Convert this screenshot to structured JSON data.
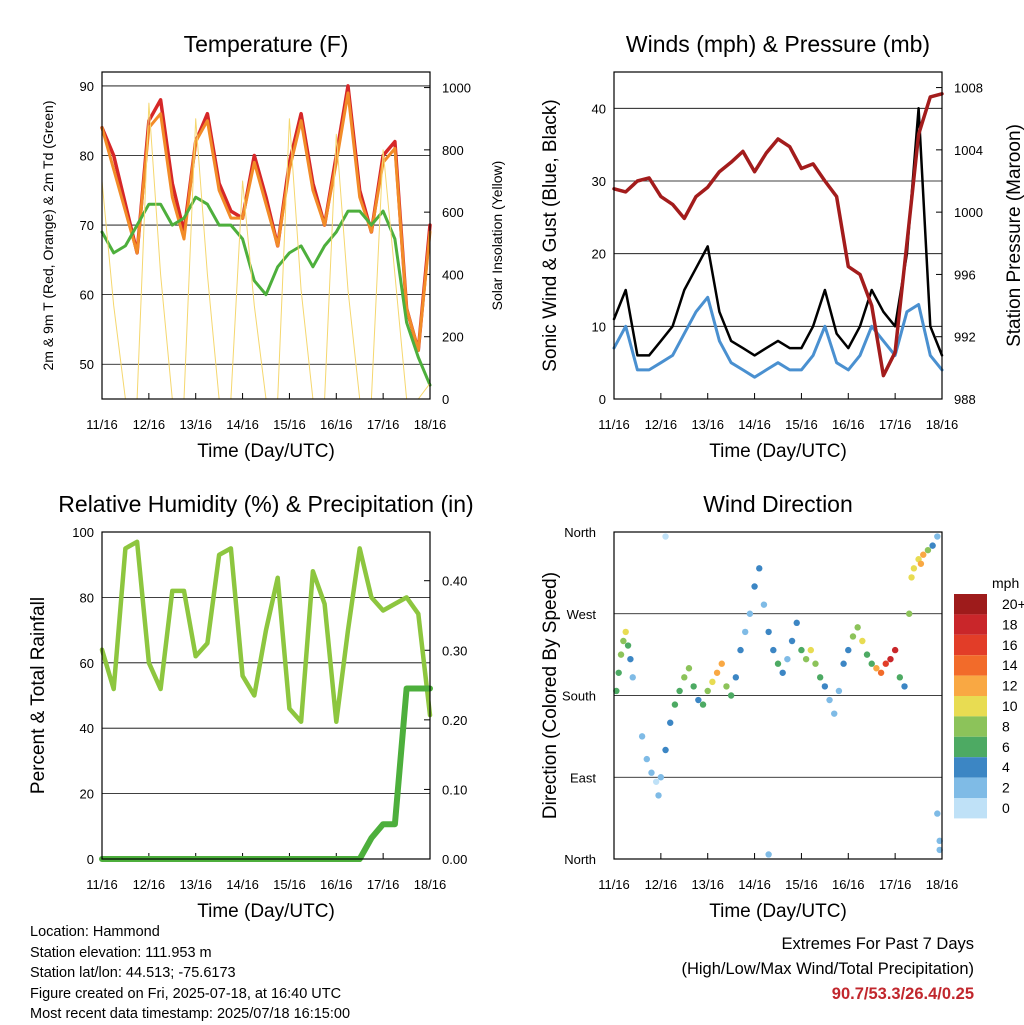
{
  "chart_data": [
    {
      "type": "line",
      "title": "Temperature (F)",
      "xlabel": "Time (Day/UTC)",
      "ylabel": "2m & 9m T (Red, Orange) & 2m Td (Green)",
      "y2label": "Solar Insolation (Yellow)",
      "x_ticks": [
        "11/16",
        "12/16",
        "13/16",
        "14/16",
        "15/16",
        "16/16",
        "17/16",
        "18/16"
      ],
      "ylim": [
        45,
        92
      ],
      "y_ticks": [
        50,
        60,
        70,
        80,
        90
      ],
      "y2lim": [
        0,
        1050
      ],
      "y2_ticks": [
        0,
        200,
        400,
        600,
        800,
        1000
      ],
      "x": [
        0,
        0.25,
        0.5,
        0.75,
        1,
        1.25,
        1.5,
        1.75,
        2,
        2.25,
        2.5,
        2.75,
        3,
        3.25,
        3.5,
        3.75,
        4,
        4.25,
        4.5,
        4.75,
        5,
        5.25,
        5.5,
        5.75,
        6,
        6.25,
        6.5,
        6.75,
        7
      ],
      "series": [
        {
          "color": "#d62728",
          "values": [
            84,
            80,
            73,
            66,
            85,
            88,
            76,
            69,
            82,
            86,
            76,
            72,
            71,
            80,
            74,
            67,
            79,
            86,
            76,
            70,
            80,
            90,
            75,
            69,
            80,
            82,
            58,
            52,
            70
          ]
        },
        {
          "color": "#f28c28",
          "values": [
            84,
            78,
            72,
            66,
            84,
            86,
            74,
            68,
            82,
            85,
            75,
            71,
            71,
            79,
            73,
            67,
            78,
            85,
            75,
            70,
            79,
            89,
            74,
            69,
            79,
            81,
            58,
            52,
            69
          ]
        },
        {
          "color": "#4daf3c",
          "values": [
            69,
            66,
            67,
            70,
            73,
            73,
            70,
            71,
            74,
            73,
            70,
            70,
            68,
            62,
            60,
            64,
            66,
            67,
            64,
            67,
            69,
            72,
            72,
            70,
            72,
            68,
            56,
            51,
            47
          ]
        },
        {
          "color": "#f5d76e",
          "values": [
            700,
            300,
            0,
            0,
            950,
            400,
            0,
            0,
            900,
            400,
            0,
            0,
            700,
            300,
            0,
            0,
            900,
            350,
            0,
            0,
            850,
            350,
            0,
            0,
            800,
            400,
            0,
            0,
            50
          ]
        }
      ]
    },
    {
      "type": "line",
      "title": "Winds (mph) & Pressure (mb)",
      "xlabel": "Time (Day/UTC)",
      "ylabel": "Sonic Wind & Gust (Blue, Black)",
      "y2label": "Station Pressure (Maroon)",
      "x_ticks": [
        "11/16",
        "12/16",
        "13/16",
        "14/16",
        "15/16",
        "16/16",
        "17/16",
        "18/16"
      ],
      "ylim": [
        0,
        45
      ],
      "y_ticks": [
        0,
        10,
        20,
        30,
        40
      ],
      "y2lim": [
        988,
        1009
      ],
      "y2_ticks": [
        988,
        992,
        996,
        1000,
        1004,
        1008
      ],
      "x": [
        0,
        0.25,
        0.5,
        0.75,
        1,
        1.25,
        1.5,
        1.75,
        2,
        2.25,
        2.5,
        2.75,
        3,
        3.25,
        3.5,
        3.75,
        4,
        4.25,
        4.5,
        4.75,
        5,
        5.25,
        5.5,
        5.75,
        6,
        6.25,
        6.5,
        6.75,
        7
      ],
      "series": [
        {
          "color": "#4a90d0",
          "values": [
            7,
            10,
            4,
            4,
            5,
            6,
            9,
            12,
            14,
            8,
            5,
            4,
            3,
            4,
            5,
            4,
            4,
            6,
            10,
            5,
            4,
            6,
            10,
            8,
            6,
            12,
            13,
            6,
            4
          ]
        },
        {
          "color": "#000000",
          "values": [
            11,
            15,
            6,
            6,
            8,
            10,
            15,
            18,
            21,
            12,
            8,
            7,
            6,
            7,
            8,
            7,
            7,
            10,
            15,
            9,
            7,
            10,
            15,
            12,
            10,
            20,
            40,
            10,
            6
          ]
        },
        {
          "color": "#a31c1c",
          "values": [
            1001.5,
            1001.3,
            1002,
            1002.2,
            1001,
            1000.5,
            999.6,
            1001,
            1001.6,
            1002.6,
            1003.2,
            1003.9,
            1002.6,
            1003.8,
            1004.7,
            1004.2,
            1002.8,
            1003.1,
            1002,
            1001,
            996.5,
            996,
            994,
            989.5,
            991,
            998,
            1005,
            1007.4,
            1007.6
          ]
        }
      ]
    },
    {
      "type": "line",
      "title": "Relative Humidity (%) & Precipitation (in)",
      "xlabel": "Time (Day/UTC)",
      "ylabel": "Percent & Total Rainfall",
      "x_ticks": [
        "11/16",
        "12/16",
        "13/16",
        "14/16",
        "15/16",
        "16/16",
        "17/16",
        "18/16"
      ],
      "ylim": [
        0,
        100
      ],
      "y_ticks": [
        0,
        20,
        40,
        60,
        80,
        100
      ],
      "y2lim": [
        0,
        0.47
      ],
      "y2_ticks": [
        "0.00",
        "0.10",
        "0.20",
        "0.30",
        "0.40"
      ],
      "x": [
        0,
        0.25,
        0.5,
        0.75,
        1,
        1.25,
        1.5,
        1.75,
        2,
        2.25,
        2.5,
        2.75,
        3,
        3.25,
        3.5,
        3.75,
        4,
        4.25,
        4.5,
        4.75,
        5,
        5.25,
        5.5,
        5.75,
        6,
        6.25,
        6.5,
        6.75,
        7
      ],
      "series": [
        {
          "color": "#8dc63f",
          "values": [
            64,
            52,
            95,
            97,
            60,
            52,
            82,
            82,
            62,
            66,
            93,
            95,
            56,
            50,
            70,
            86,
            46,
            42,
            88,
            78,
            42,
            70,
            95,
            80,
            76,
            78,
            80,
            75,
            44
          ]
        },
        {
          "color": "#4daf3c",
          "values": [
            0,
            0,
            0,
            0,
            0,
            0,
            0,
            0,
            0,
            0,
            0,
            0,
            0,
            0,
            0,
            0,
            0,
            0,
            0,
            0,
            0,
            0,
            0,
            0.03,
            0.05,
            0.05,
            0.245,
            0.245,
            0.245
          ]
        }
      ]
    },
    {
      "type": "scatter",
      "title": "Wind Direction",
      "xlabel": "Time (Day/UTC)",
      "ylabel": "Direction (Colored By Speed)",
      "x_ticks": [
        "11/16",
        "12/16",
        "13/16",
        "14/16",
        "15/16",
        "16/16",
        "17/16",
        "18/16"
      ],
      "ylim": [
        0,
        360
      ],
      "y_tick_labels": [
        "North",
        "East",
        "South",
        "West",
        "North"
      ],
      "legend": {
        "title": "mph",
        "labels": [
          "20+",
          "18",
          "16",
          "14",
          "12",
          "10",
          "8",
          "6",
          "4",
          "2",
          "0"
        ],
        "colors": [
          "#9e1b1b",
          "#c9262a",
          "#e23d28",
          "#f26b2a",
          "#f9a843",
          "#e8dc52",
          "#8cc35a",
          "#4daa63",
          "#3c86c4",
          "#7fbbe6",
          "#bfe1f7"
        ]
      },
      "points": [
        [
          0.05,
          185,
          6
        ],
        [
          0.1,
          205,
          7
        ],
        [
          0.15,
          225,
          8
        ],
        [
          0.2,
          240,
          9
        ],
        [
          0.25,
          250,
          10
        ],
        [
          0.3,
          235,
          7
        ],
        [
          0.35,
          220,
          5
        ],
        [
          0.4,
          200,
          3
        ],
        [
          0.6,
          135,
          3
        ],
        [
          0.7,
          110,
          2
        ],
        [
          0.8,
          95,
          2
        ],
        [
          0.9,
          85,
          1
        ],
        [
          0.95,
          70,
          2
        ],
        [
          1.0,
          90,
          3
        ],
        [
          1.1,
          120,
          4
        ],
        [
          1.2,
          150,
          5
        ],
        [
          1.3,
          170,
          6
        ],
        [
          1.4,
          185,
          7
        ],
        [
          1.5,
          200,
          8
        ],
        [
          1.6,
          210,
          9
        ],
        [
          1.7,
          190,
          6
        ],
        [
          1.8,
          175,
          5
        ],
        [
          1.9,
          170,
          6
        ],
        [
          2.0,
          185,
          9
        ],
        [
          2.1,
          195,
          11
        ],
        [
          2.2,
          205,
          12
        ],
        [
          2.3,
          215,
          13
        ],
        [
          2.4,
          190,
          8
        ],
        [
          2.5,
          180,
          6
        ],
        [
          2.6,
          200,
          5
        ],
        [
          2.7,
          230,
          4
        ],
        [
          2.8,
          250,
          3
        ],
        [
          2.9,
          270,
          3
        ],
        [
          3.0,
          300,
          4
        ],
        [
          3.1,
          320,
          4
        ],
        [
          3.2,
          280,
          3
        ],
        [
          3.3,
          250,
          4
        ],
        [
          3.4,
          230,
          5
        ],
        [
          3.5,
          215,
          6
        ],
        [
          3.6,
          205,
          4
        ],
        [
          3.7,
          220,
          3
        ],
        [
          3.8,
          240,
          4
        ],
        [
          3.9,
          260,
          4
        ],
        [
          4.0,
          230,
          6
        ],
        [
          4.1,
          220,
          9
        ],
        [
          4.2,
          230,
          11
        ],
        [
          4.3,
          215,
          8
        ],
        [
          4.4,
          200,
          6
        ],
        [
          4.5,
          190,
          4
        ],
        [
          4.6,
          175,
          3
        ],
        [
          4.7,
          160,
          2
        ],
        [
          4.8,
          185,
          3
        ],
        [
          4.9,
          215,
          4
        ],
        [
          5.0,
          230,
          5
        ],
        [
          5.1,
          245,
          8
        ],
        [
          5.2,
          255,
          9
        ],
        [
          5.3,
          240,
          10
        ],
        [
          5.4,
          225,
          7
        ],
        [
          5.5,
          215,
          6
        ],
        [
          5.6,
          210,
          13
        ],
        [
          5.7,
          205,
          15
        ],
        [
          5.8,
          215,
          17
        ],
        [
          5.9,
          220,
          18
        ],
        [
          6.0,
          230,
          19
        ],
        [
          6.1,
          200,
          6
        ],
        [
          6.2,
          190,
          5
        ],
        [
          6.3,
          270,
          8
        ],
        [
          6.4,
          320,
          10
        ],
        [
          6.5,
          330,
          11
        ],
        [
          6.6,
          335,
          12
        ],
        [
          6.7,
          340,
          9
        ],
        [
          6.8,
          345,
          5
        ],
        [
          6.9,
          355,
          3
        ],
        [
          6.95,
          10,
          2
        ],
        [
          6.9,
          50,
          3
        ],
        [
          6.95,
          20,
          2
        ],
        [
          3.3,
          5,
          3
        ],
        [
          1.1,
          355,
          1
        ],
        [
          6.35,
          310,
          10
        ],
        [
          6.55,
          325,
          13
        ]
      ]
    }
  ],
  "info": {
    "location": "Location: Hammond",
    "elevation": "Station elevation: 111.953 m",
    "latlon": "Station lat/lon: 44.513; -75.6173",
    "created": "Figure created on Fri, 2025-07-18, at 16:40 UTC",
    "recent": "Most recent data timestamp: 2025/07/18 16:15:00"
  },
  "extremes": {
    "title": "Extremes For Past 7 Days",
    "subtitle": "(High/Low/Max Wind/Total Precipitation)",
    "values": "90.7/53.3/26.4/0.25"
  }
}
